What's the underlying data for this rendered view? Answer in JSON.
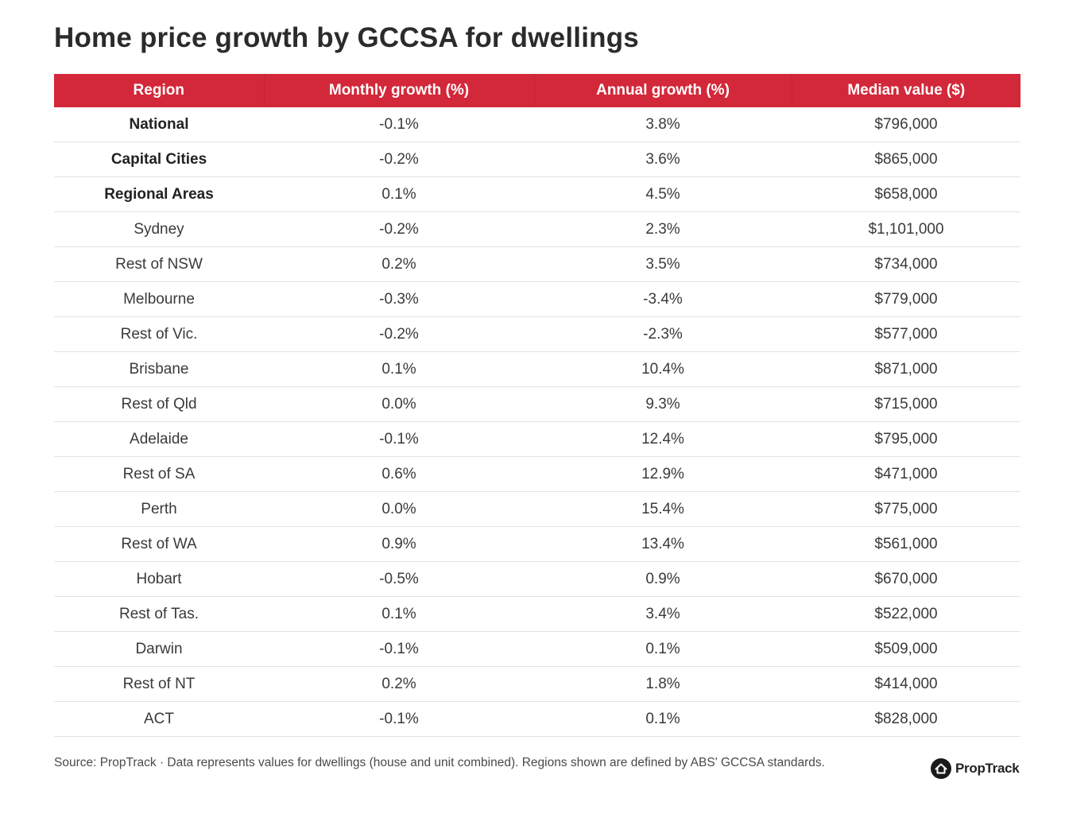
{
  "title": "Home price growth by GCCSA for dwellings",
  "accent_color": "#d3283a",
  "chart_data": {
    "type": "table",
    "columns": [
      "Region",
      "Monthly growth (%)",
      "Annual growth (%)",
      "Median value ($)"
    ],
    "rows": [
      {
        "region": "National",
        "bold": true,
        "monthly": "-0.1%",
        "annual": "3.8%",
        "median": "$796,000"
      },
      {
        "region": "Capital Cities",
        "bold": true,
        "monthly": "-0.2%",
        "annual": "3.6%",
        "median": "$865,000"
      },
      {
        "region": "Regional Areas",
        "bold": true,
        "monthly": "0.1%",
        "annual": "4.5%",
        "median": "$658,000"
      },
      {
        "region": "Sydney",
        "bold": false,
        "monthly": "-0.2%",
        "annual": "2.3%",
        "median": "$1,101,000"
      },
      {
        "region": "Rest of NSW",
        "bold": false,
        "monthly": "0.2%",
        "annual": "3.5%",
        "median": "$734,000"
      },
      {
        "region": "Melbourne",
        "bold": false,
        "monthly": "-0.3%",
        "annual": "-3.4%",
        "median": "$779,000"
      },
      {
        "region": "Rest of Vic.",
        "bold": false,
        "monthly": "-0.2%",
        "annual": "-2.3%",
        "median": "$577,000"
      },
      {
        "region": "Brisbane",
        "bold": false,
        "monthly": "0.1%",
        "annual": "10.4%",
        "median": "$871,000"
      },
      {
        "region": "Rest of Qld",
        "bold": false,
        "monthly": "0.0%",
        "annual": "9.3%",
        "median": "$715,000"
      },
      {
        "region": "Adelaide",
        "bold": false,
        "monthly": "-0.1%",
        "annual": "12.4%",
        "median": "$795,000"
      },
      {
        "region": "Rest of SA",
        "bold": false,
        "monthly": "0.6%",
        "annual": "12.9%",
        "median": "$471,000"
      },
      {
        "region": "Perth",
        "bold": false,
        "monthly": "0.0%",
        "annual": "15.4%",
        "median": "$775,000"
      },
      {
        "region": "Rest of WA",
        "bold": false,
        "monthly": "0.9%",
        "annual": "13.4%",
        "median": "$561,000"
      },
      {
        "region": "Hobart",
        "bold": false,
        "monthly": "-0.5%",
        "annual": "0.9%",
        "median": "$670,000"
      },
      {
        "region": "Rest of Tas.",
        "bold": false,
        "monthly": "0.1%",
        "annual": "3.4%",
        "median": "$522,000"
      },
      {
        "region": "Darwin",
        "bold": false,
        "monthly": "-0.1%",
        "annual": "0.1%",
        "median": "$509,000"
      },
      {
        "region": "Rest of NT",
        "bold": false,
        "monthly": "0.2%",
        "annual": "1.8%",
        "median": "$414,000"
      },
      {
        "region": "ACT",
        "bold": false,
        "monthly": "-0.1%",
        "annual": "0.1%",
        "median": "$828,000"
      }
    ]
  },
  "footer": {
    "source": "Source: PropTrack · Data represents values for dwellings (house and unit combined). Regions shown are defined by ABS' GCCSA standards.",
    "brand_name": "PropTrack",
    "brand_icon": "house-icon"
  }
}
